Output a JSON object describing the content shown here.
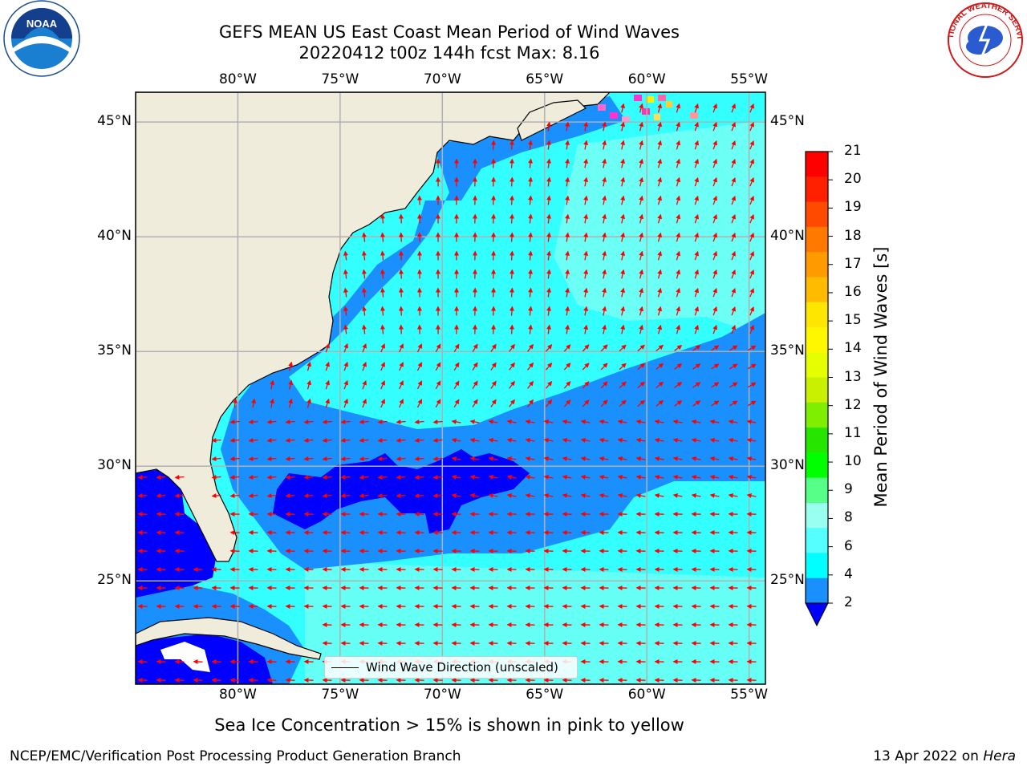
{
  "title": {
    "line1": "GEFS MEAN US East Coast Mean Period of Wind Waves",
    "line2": "20220412 t00z 144h fcst   Max: 8.16"
  },
  "map": {
    "lon_labels": [
      "80°W",
      "75°W",
      "70°W",
      "65°W",
      "60°W",
      "55°W"
    ],
    "lat_labels": [
      "45°N",
      "40°N",
      "35°N",
      "30°N",
      "25°N"
    ],
    "lon_range": [
      -85,
      -54.2
    ],
    "lat_range": [
      20.5,
      46.3
    ],
    "gridlines": true,
    "colors": {
      "land": "#efecdc",
      "sea_light": "#33ffff",
      "sea_mid": "#1a90ff",
      "sea_dark": "#0000ff",
      "sea_pale": "#99ffee",
      "arrows": "#ff0000",
      "grid": "#b0b0b0"
    }
  },
  "colorbar": {
    "label": "Mean Period of Wind Waves [s]",
    "ticks": [
      "21",
      "20",
      "19",
      "18",
      "17",
      "16",
      "15",
      "14",
      "13",
      "12",
      "11",
      "10",
      "9",
      "8",
      "6",
      "4",
      "2"
    ],
    "colors": [
      "#ff0000",
      "#ff2000",
      "#ff4a00",
      "#ff7800",
      "#ff9a00",
      "#ffbb00",
      "#ffe600",
      "#fff700",
      "#e6ff00",
      "#c8f000",
      "#80ee00",
      "#26e600",
      "#00ff00",
      "#55ff88",
      "#99ffee",
      "#55ffff",
      "#00ffff",
      "#1a90ff"
    ],
    "extend_color": "#0000ff"
  },
  "legend": {
    "label": "Wind Wave Direction (unscaled)"
  },
  "note": "Sea Ice Concentration > 15% is shown in pink to yellow",
  "footer": {
    "left": "NCEP/EMC/Verification Post Processing Product Generation Branch",
    "right_date": "13 Apr 2022 on",
    "right_host": "Hera"
  },
  "logos": {
    "noaa_text": "NOAA",
    "nws_text": "NATIONAL WEATHER SERVICE"
  }
}
